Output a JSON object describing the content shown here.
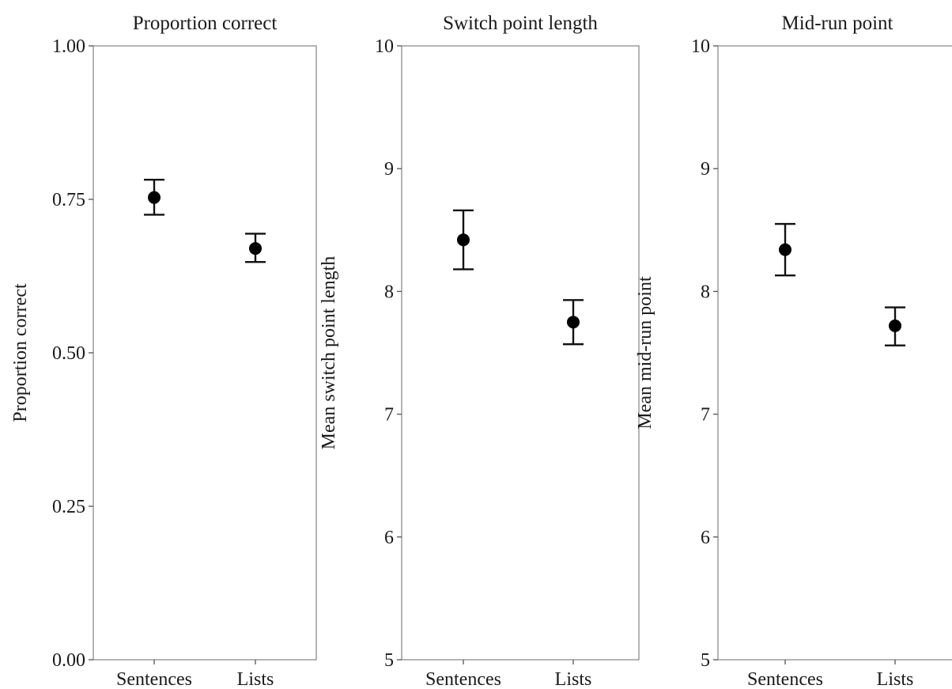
{
  "chart_data": [
    {
      "type": "scatter",
      "title": "Proportion correct",
      "xlabel": "",
      "ylabel": "Proportion correct",
      "categories": [
        "Sentences",
        "Lists"
      ],
      "values": [
        0.753,
        0.67
      ],
      "error_low": [
        0.725,
        0.648
      ],
      "error_high": [
        0.782,
        0.694
      ],
      "ylim": [
        0,
        1
      ],
      "yticks": [
        0.0,
        0.25,
        0.5,
        0.75,
        1.0
      ],
      "ytick_labels": [
        "0.00",
        "0.25",
        "0.50",
        "0.75",
        "1.00"
      ],
      "grid": false,
      "legend": "none"
    },
    {
      "type": "scatter",
      "title": "Switch point length",
      "xlabel": "",
      "ylabel": "Mean switch point length",
      "categories": [
        "Sentences",
        "Lists"
      ],
      "values": [
        8.42,
        7.75
      ],
      "error_low": [
        8.18,
        7.57
      ],
      "error_high": [
        8.66,
        7.93
      ],
      "ylim": [
        5,
        10
      ],
      "yticks": [
        5,
        6,
        7,
        8,
        9,
        10
      ],
      "ytick_labels": [
        "5",
        "6",
        "7",
        "8",
        "9",
        "10"
      ],
      "grid": false,
      "legend": "none"
    },
    {
      "type": "scatter",
      "title": "Mid-run point",
      "xlabel": "",
      "ylabel": "Mean mid-run point",
      "categories": [
        "Sentences",
        "Lists"
      ],
      "values": [
        8.34,
        7.72
      ],
      "error_low": [
        8.13,
        7.56
      ],
      "error_high": [
        8.55,
        7.87
      ],
      "ylim": [
        5,
        10
      ],
      "yticks": [
        5,
        6,
        7,
        8,
        9,
        10
      ],
      "ytick_labels": [
        "5",
        "6",
        "7",
        "8",
        "9",
        "10"
      ],
      "grid": false,
      "legend": "none"
    }
  ]
}
